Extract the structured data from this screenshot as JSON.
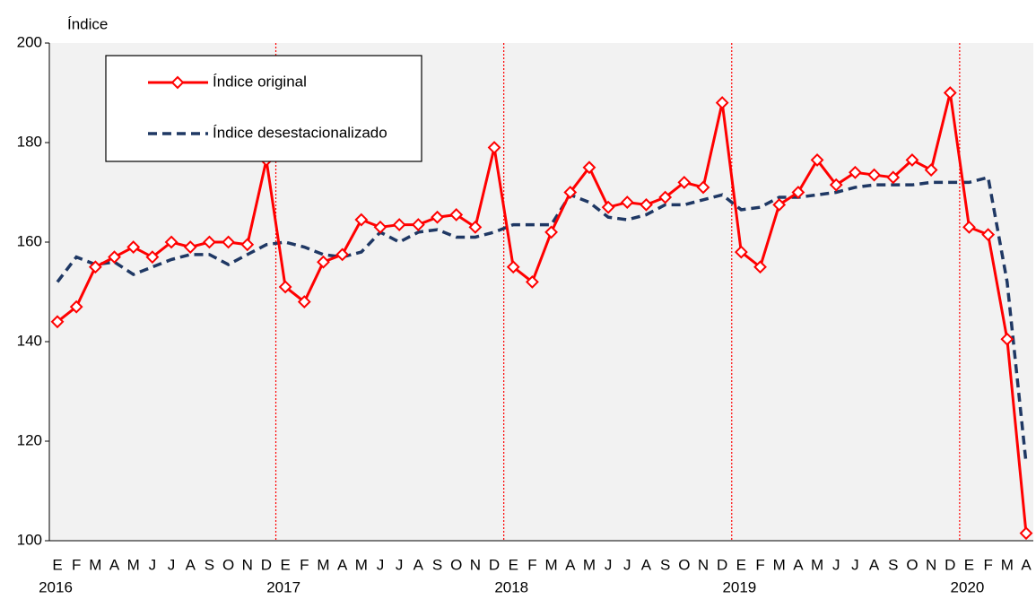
{
  "chart_data": {
    "type": "line",
    "y_label": "Índice",
    "categories": [
      "E",
      "F",
      "M",
      "A",
      "M",
      "J",
      "J",
      "A",
      "S",
      "O",
      "N",
      "D",
      "E",
      "F",
      "M",
      "A",
      "M",
      "J",
      "J",
      "A",
      "S",
      "O",
      "N",
      "D",
      "E",
      "F",
      "M",
      "A",
      "M",
      "J",
      "J",
      "A",
      "S",
      "O",
      "N",
      "D",
      "E",
      "F",
      "M",
      "A",
      "M",
      "J",
      "J",
      "A",
      "S",
      "O",
      "N",
      "D",
      "E",
      "F",
      "M",
      "A"
    ],
    "years": [
      "2016",
      "2017",
      "2018",
      "2019",
      "2020"
    ],
    "series": [
      {
        "name": "Índice original",
        "color": "#ff0000",
        "style": "solid",
        "marker": "diamond",
        "values": [
          144,
          147,
          155,
          157,
          159,
          157,
          160,
          159,
          160,
          160,
          159.5,
          176.5,
          151,
          148,
          156,
          157.5,
          164.5,
          163,
          163.5,
          163.5,
          165,
          165.5,
          163,
          179,
          155,
          152,
          162,
          170,
          175,
          167,
          168,
          167.5,
          169,
          172,
          171,
          188,
          158,
          155,
          167.5,
          170,
          176.5,
          171.5,
          174,
          173.5,
          173,
          176.5,
          174.5,
          190,
          163,
          161.5,
          140.5,
          101.5
        ]
      },
      {
        "name": "Índice desestacionalizado",
        "color": "#1f3864",
        "style": "dashed",
        "values": [
          152,
          157,
          155.5,
          156,
          153.5,
          155,
          156.5,
          157.5,
          157.5,
          155.5,
          157.5,
          159.5,
          160,
          159,
          157.5,
          157,
          158,
          162,
          160,
          162,
          162.5,
          161,
          161,
          162,
          163.5,
          163.5,
          163.5,
          169.5,
          168,
          165,
          164.5,
          165.5,
          167.5,
          167.5,
          168.5,
          169.5,
          166.5,
          167,
          169,
          169,
          169.5,
          170,
          171,
          171.5,
          171.5,
          171.5,
          172,
          172,
          172,
          173,
          152,
          115.5
        ]
      }
    ],
    "ylim": [
      100,
      200
    ],
    "yticks": [
      100,
      120,
      140,
      160,
      180,
      200
    ]
  }
}
